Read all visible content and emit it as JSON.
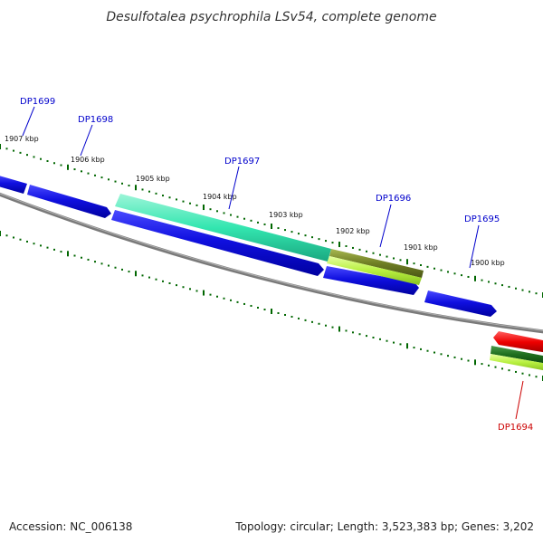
{
  "title": "Desulfotalea psychrophila LSv54, complete genome",
  "footer": {
    "accession": "Accession: NC_006138",
    "summary": "Topology: circular; Length: 3,523,383 bp; Genes: 3,202"
  },
  "ticks": [
    {
      "label": "1907 kbp"
    },
    {
      "label": "1906 kbp"
    },
    {
      "label": "1905 kbp"
    },
    {
      "label": "1904 kbp"
    },
    {
      "label": "1903 kbp"
    },
    {
      "label": "1902 kbp"
    },
    {
      "label": "1901 kbp"
    },
    {
      "label": "1900 kbp"
    }
  ],
  "genes": [
    {
      "label": "DP1699",
      "strand": "forward",
      "color": "#0000cc"
    },
    {
      "label": "DP1698",
      "strand": "forward",
      "color": "#0000cc"
    },
    {
      "label": "DP1697",
      "strand": "forward",
      "color": "#0000cc"
    },
    {
      "label": "DP1696",
      "strand": "forward",
      "color": "#0000cc"
    },
    {
      "label": "DP1695",
      "strand": "forward",
      "color": "#0000cc"
    },
    {
      "label": "DP1694",
      "strand": "reverse",
      "color": "#cc0000"
    }
  ],
  "colors": {
    "forward_gene": "#1010e0",
    "reverse_gene": "#ee0000",
    "backbone": "#7a7a7a",
    "tick": "#006600",
    "feature_teal": "#33e6b0",
    "feature_olive": "#7a8a2a",
    "feature_lime": "#b8f040"
  }
}
